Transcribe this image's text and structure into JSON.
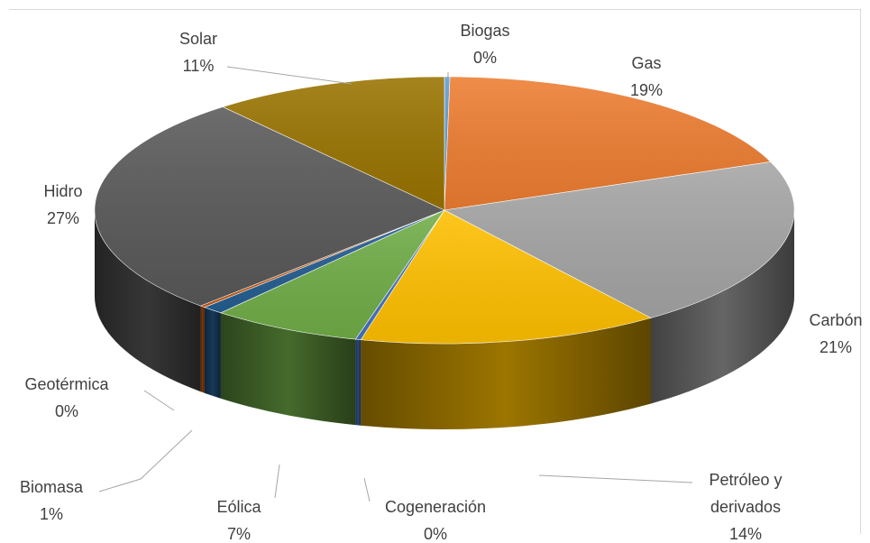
{
  "chart_data": {
    "type": "pie",
    "style": "3d",
    "legend": "none",
    "slices": [
      {
        "name": "Biogas",
        "value": 0,
        "percent_label": "0%",
        "color": "#5b9bd5"
      },
      {
        "name": "Gas",
        "value": 19,
        "percent_label": "19%",
        "color": "#ed7d31"
      },
      {
        "name": "Carbón",
        "value": 21,
        "percent_label": "21%",
        "color": "#a5a5a5"
      },
      {
        "name": "Petróleo y derivados",
        "value": 14,
        "percent_label": "14%",
        "color": "#ffc000"
      },
      {
        "name": "Cogeneración",
        "value": 0,
        "percent_label": "0%",
        "color": "#4472c4"
      },
      {
        "name": "Eólica",
        "value": 7,
        "percent_label": "7%",
        "color": "#70ad47"
      },
      {
        "name": "Biomasa",
        "value": 1,
        "percent_label": "1%",
        "color": "#255e91"
      },
      {
        "name": "Geotérmica",
        "value": 0,
        "percent_label": "0%",
        "color": "#c55a11"
      },
      {
        "name": "Hidro",
        "value": 27,
        "percent_label": "27%",
        "color": "#595959"
      },
      {
        "name": "Solar",
        "value": 11,
        "percent_label": "11%",
        "color": "#997300"
      }
    ]
  }
}
